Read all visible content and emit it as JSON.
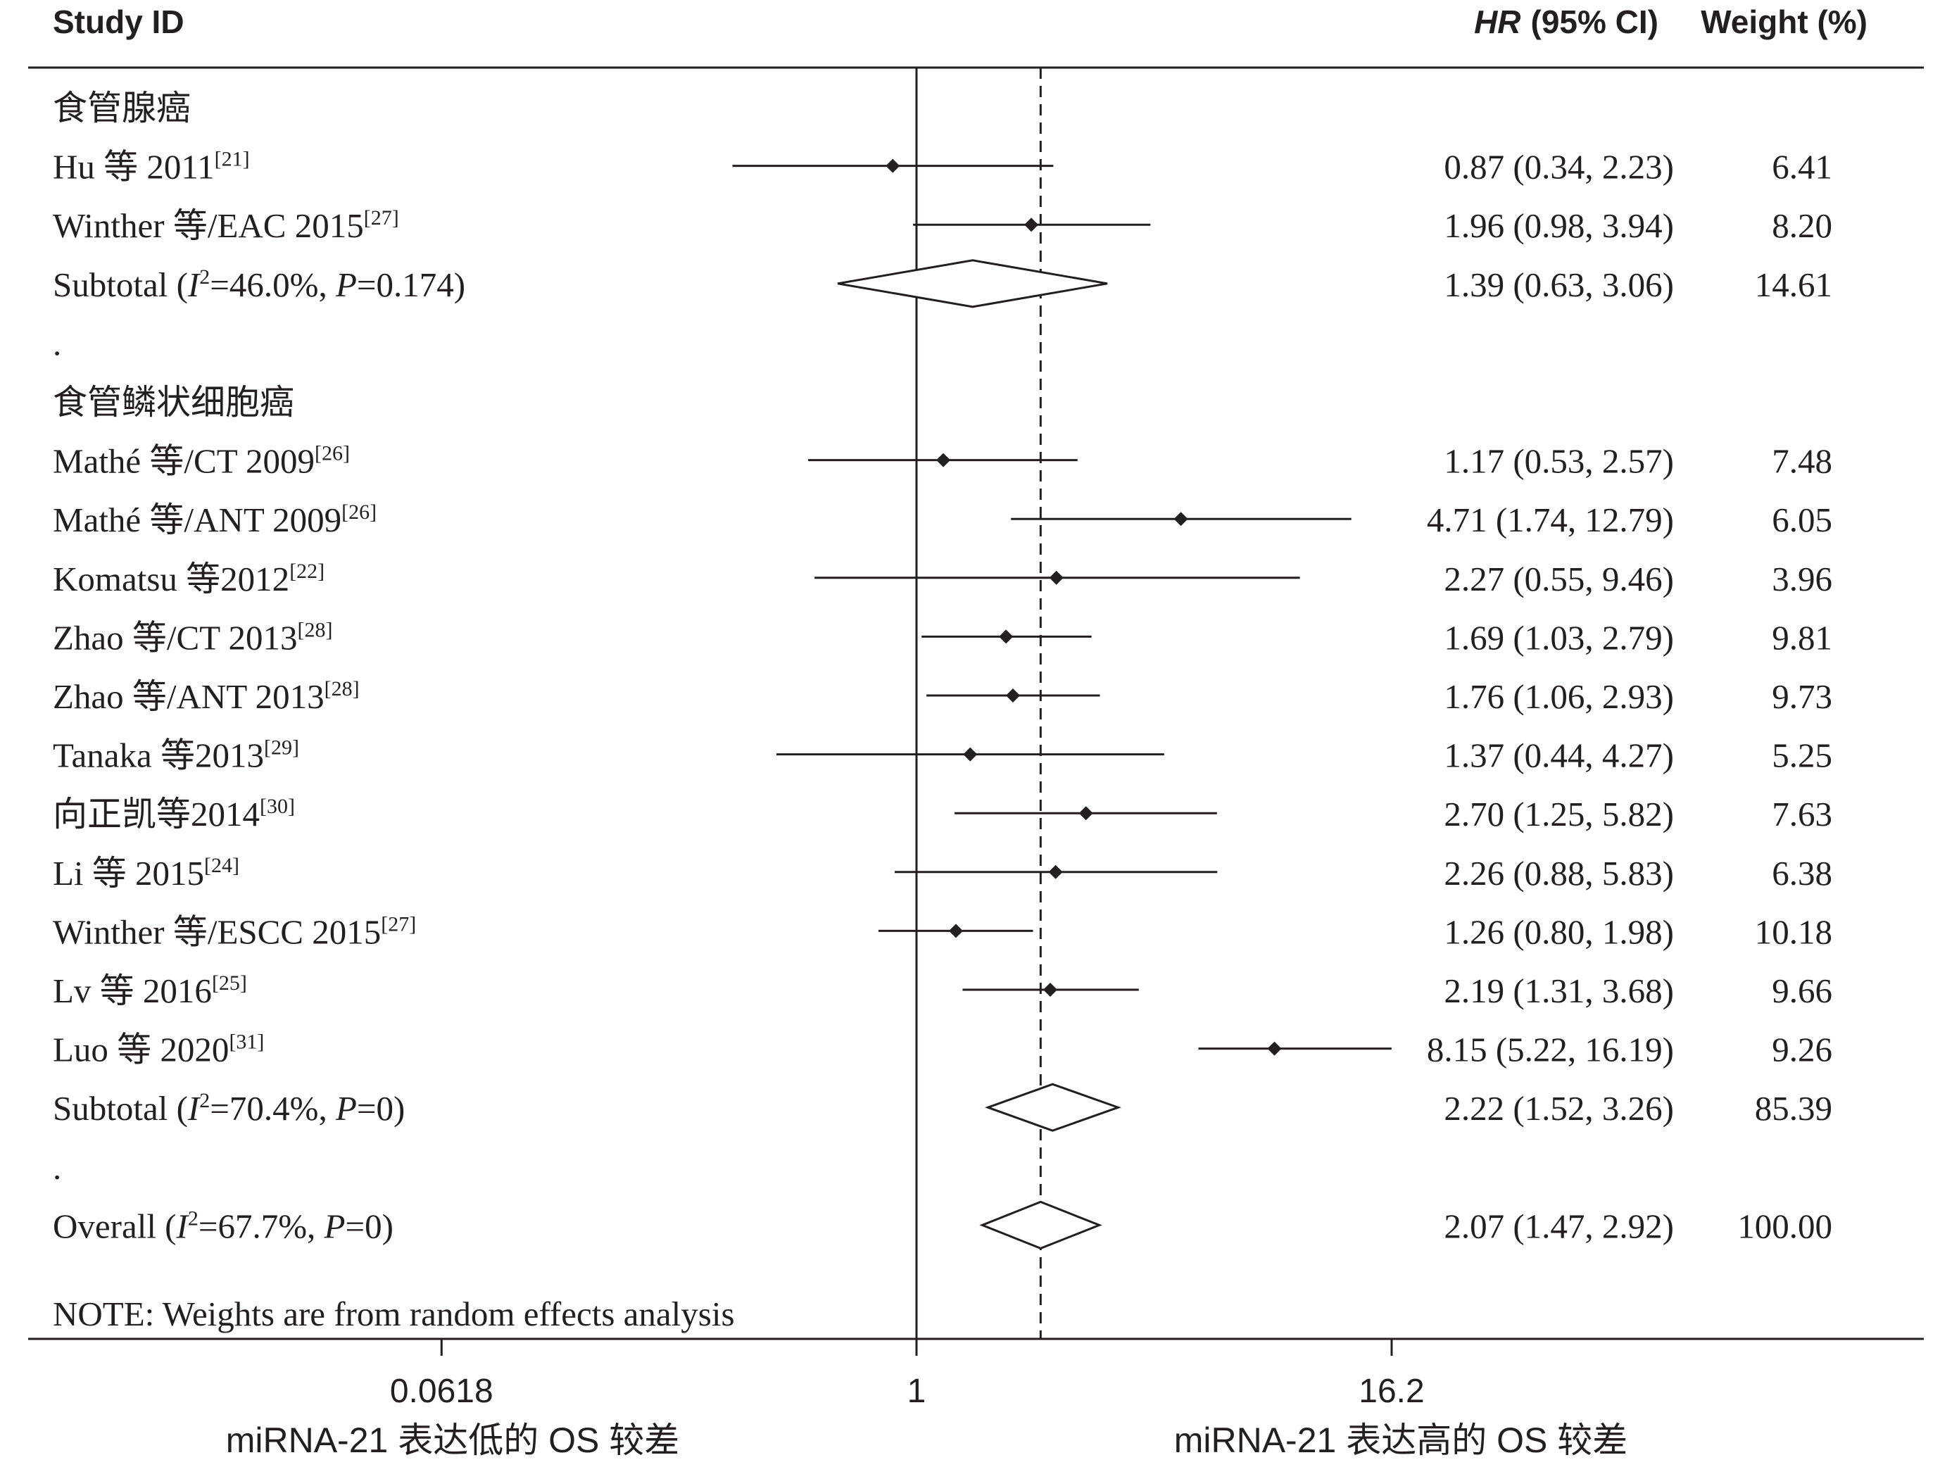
{
  "header": {
    "study_id": "Study ID",
    "hr_label": "HR",
    "ci_label": "(95% CI)",
    "weight_label": "Weight (%)"
  },
  "chart_data": {
    "type": "forest",
    "xscale": "log",
    "xticks": [
      {
        "value": 0.0618,
        "label": "0.0618"
      },
      {
        "value": 1,
        "label": "1"
      },
      {
        "value": 16.2,
        "label": "16.2"
      }
    ],
    "x_left_caption": "miRNA-21 表达低的 OS 较差",
    "x_right_caption": "miRNA-21 表达高的 OS 较差",
    "overall_line_value": 2.07,
    "note": "NOTE: Weights are from random effects analysis",
    "rows": [
      {
        "kind": "group",
        "label": "食管腺癌"
      },
      {
        "kind": "study",
        "label": "Hu 等 2011",
        "ref": "[21]",
        "hr": 0.87,
        "lo": 0.34,
        "hi": 2.23,
        "ci_text": "0.87 (0.34, 2.23)",
        "weight": "6.41"
      },
      {
        "kind": "study",
        "label": "Winther 等/EAC 2015",
        "ref": "[27]",
        "hr": 1.96,
        "lo": 0.98,
        "hi": 3.94,
        "ci_text": "1.96 (0.98, 3.94)",
        "weight": "8.20"
      },
      {
        "kind": "subtotal",
        "prefix": "Subtotal (",
        "i2": "=46.0%, ",
        "p": "=0.174)",
        "hr": 1.39,
        "lo": 0.63,
        "hi": 3.06,
        "ci_text": "1.39 (0.63, 3.06)",
        "weight": "14.61"
      },
      {
        "kind": "dot",
        "label": "."
      },
      {
        "kind": "group",
        "label": "食管鳞状细胞癌"
      },
      {
        "kind": "study",
        "label": "Mathé 等/CT 2009",
        "ref": "[26]",
        "hr": 1.17,
        "lo": 0.53,
        "hi": 2.57,
        "ci_text": "1.17 (0.53, 2.57)",
        "weight": "7.48"
      },
      {
        "kind": "study",
        "label": "Mathé 等/ANT 2009",
        "ref": "[26]",
        "hr": 4.71,
        "lo": 1.74,
        "hi": 12.79,
        "ci_text": "4.71 (1.74, 12.79)",
        "weight": "6.05"
      },
      {
        "kind": "study",
        "label": "Komatsu 等2012",
        "ref": "[22]",
        "hr": 2.27,
        "lo": 0.55,
        "hi": 9.46,
        "ci_text": "2.27 (0.55, 9.46)",
        "weight": "3.96"
      },
      {
        "kind": "study",
        "label": "Zhao 等/CT 2013",
        "ref": "[28]",
        "hr": 1.69,
        "lo": 1.03,
        "hi": 2.79,
        "ci_text": "1.69 (1.03, 2.79)",
        "weight": "9.81"
      },
      {
        "kind": "study",
        "label": "Zhao 等/ANT 2013",
        "ref": "[28]",
        "hr": 1.76,
        "lo": 1.06,
        "hi": 2.93,
        "ci_text": "1.76 (1.06, 2.93)",
        "weight": "9.73"
      },
      {
        "kind": "study",
        "label": "Tanaka 等2013",
        "ref": "[29]",
        "hr": 1.37,
        "lo": 0.44,
        "hi": 4.27,
        "ci_text": "1.37 (0.44, 4.27)",
        "weight": "5.25"
      },
      {
        "kind": "study",
        "label": "向正凯等2014",
        "ref": "[30]",
        "hr": 2.7,
        "lo": 1.25,
        "hi": 5.82,
        "ci_text": "2.70 (1.25, 5.82)",
        "weight": "7.63"
      },
      {
        "kind": "study",
        "label": "Li 等 2015",
        "ref": "[24]",
        "hr": 2.26,
        "lo": 0.88,
        "hi": 5.83,
        "ci_text": "2.26 (0.88, 5.83)",
        "weight": "6.38"
      },
      {
        "kind": "study",
        "label": "Winther 等/ESCC 2015",
        "ref": "[27]",
        "hr": 1.26,
        "lo": 0.8,
        "hi": 1.98,
        "ci_text": "1.26 (0.80, 1.98)",
        "weight": "10.18"
      },
      {
        "kind": "study",
        "label": "Lv 等 2016",
        "ref": "[25]",
        "hr": 2.19,
        "lo": 1.31,
        "hi": 3.68,
        "ci_text": "2.19 (1.31, 3.68)",
        "weight": "9.66"
      },
      {
        "kind": "study",
        "label": "Luo 等 2020",
        "ref": "[31]",
        "hr": 8.15,
        "lo": 5.22,
        "hi": 16.19,
        "ci_text": "8.15 (5.22, 16.19)",
        "weight": "9.26"
      },
      {
        "kind": "subtotal",
        "prefix": "Subtotal (",
        "i2": "=70.4%, ",
        "p": "=0)",
        "hr": 2.22,
        "lo": 1.52,
        "hi": 3.26,
        "ci_text": "2.22 (1.52, 3.26)",
        "weight": "85.39"
      },
      {
        "kind": "dot",
        "label": "."
      },
      {
        "kind": "overall",
        "prefix": "Overall (",
        "i2": "=67.7%, ",
        "p": "=0)",
        "hr": 2.07,
        "lo": 1.47,
        "hi": 2.92,
        "ci_text": "2.07 (1.47, 2.92)",
        "weight": "100.00"
      }
    ]
  }
}
